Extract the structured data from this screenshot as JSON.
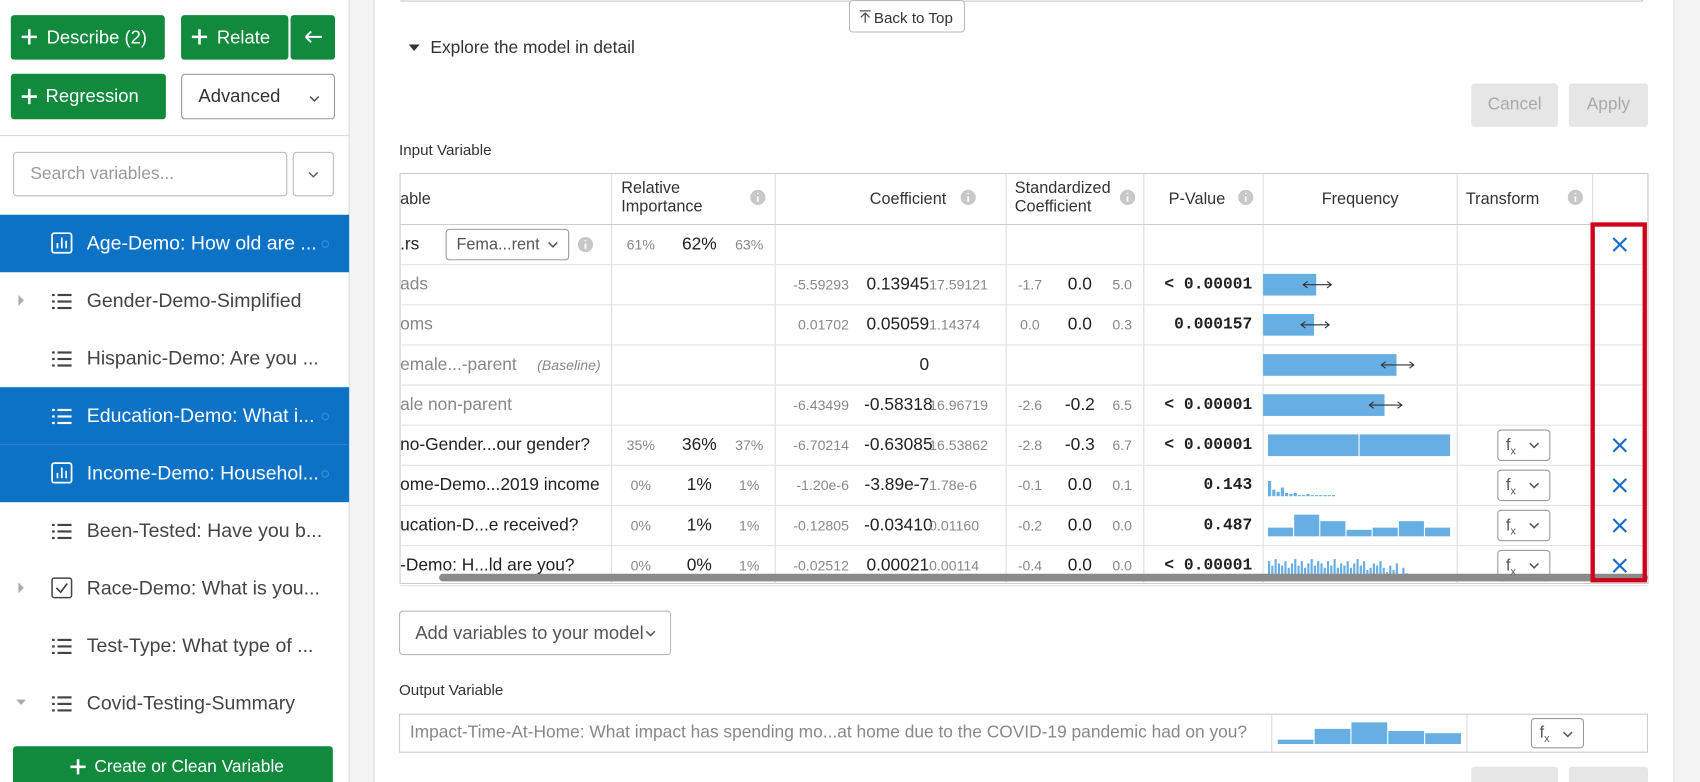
{
  "sidebar": {
    "buttons": {
      "describe": "Describe (2)",
      "relate": "Relate",
      "regression": "Regression",
      "advanced": "Advanced"
    },
    "search_placeholder": "Search variables...",
    "variables": [
      "Age-Demo: How old are ...",
      "Gender-Demo-Simplified",
      "Hispanic-Demo: Are you ...",
      "Education-Demo: What i...",
      "Income-Demo: Househol...",
      "Been-Tested: Have you b...",
      "Race-Demo: What is you...",
      "Test-Type: What type of ...",
      "Covid-Testing-Summary"
    ],
    "create_button": "Create or Clean Variable"
  },
  "main": {
    "back_to_top": "Back to Top",
    "explore": "Explore the model in detail",
    "cancel": "Cancel",
    "apply": "Apply",
    "input_label": "Input Variable",
    "table": {
      "headers": {
        "variable": "able",
        "importance": "Relative Importance",
        "coefficient": "Coefficient",
        "standardized": "Standardized Coefficient",
        "p_value": "P-Value",
        "frequency": "Frequency",
        "transform": "Transform"
      },
      "fx": [
        "f",
        "x"
      ],
      "rows": [
        {
          "variable": ".rs",
          "dropdown": "Fema...rent",
          "importance": [
            "61%",
            "62%",
            "63%"
          ]
        },
        {
          "variable": "ads",
          "coefficient": [
            "-5.59293",
            "0.13945",
            "17.59121"
          ],
          "standardized": [
            "-1.7",
            "0.0",
            "5.0"
          ],
          "p_value": "< 0.00001"
        },
        {
          "variable": "oms",
          "coefficient": [
            "0.01702",
            "0.05059",
            "1.14374"
          ],
          "standardized": [
            "0.0",
            "0.0",
            "0.3"
          ],
          "p_value": "0.000157"
        },
        {
          "variable": "emale...-parent",
          "baseline": "(Baseline)",
          "coefficient": [
            "0"
          ]
        },
        {
          "variable": "ale non-parent",
          "coefficient": [
            "-6.43499",
            "-0.58318",
            "16.96719"
          ],
          "standardized": [
            "-2.6",
            "-0.2",
            "6.5"
          ],
          "p_value": "< 0.00001"
        },
        {
          "variable": "no-Gender...our gender?",
          "importance": [
            "35%",
            "36%",
            "37%"
          ],
          "coefficient": [
            "-6.70214",
            "-0.63085",
            "16.53862"
          ],
          "standardized": [
            "-2.8",
            "-0.3",
            "6.7"
          ],
          "p_value": "< 0.00001"
        },
        {
          "variable": "ome-Demo...2019 income",
          "importance": [
            "0%",
            "1%",
            "1%"
          ],
          "coefficient": [
            "-1.20e-6",
            "-3.89e-7",
            "1.78e-6"
          ],
          "standardized": [
            "-0.1",
            "0.0",
            "0.1"
          ],
          "p_value": "0.143"
        },
        {
          "variable": "ucation-D...e received?",
          "importance": [
            "0%",
            "1%",
            "1%"
          ],
          "coefficient": [
            "-0.12805",
            "-0.03410",
            "0.01160"
          ],
          "standardized": [
            "-0.2",
            "0.0",
            "0.0"
          ],
          "p_value": "0.487"
        },
        {
          "variable": "-Demo: H...ld are you?",
          "importance": [
            "0%",
            "0%",
            "1%"
          ],
          "coefficient": [
            "-0.02512",
            "0.00021",
            "0.00114"
          ],
          "standardized": [
            "-0.4",
            "0.0",
            "0.0"
          ],
          "p_value": "< 0.00001"
        }
      ]
    },
    "add_variables": "Add variables to your model",
    "output_label": "Output Variable",
    "output_variable": "Impact-Time-At-Home: What impact has spending mo...at home due to the COVID-19 pandemic had on you?"
  }
}
